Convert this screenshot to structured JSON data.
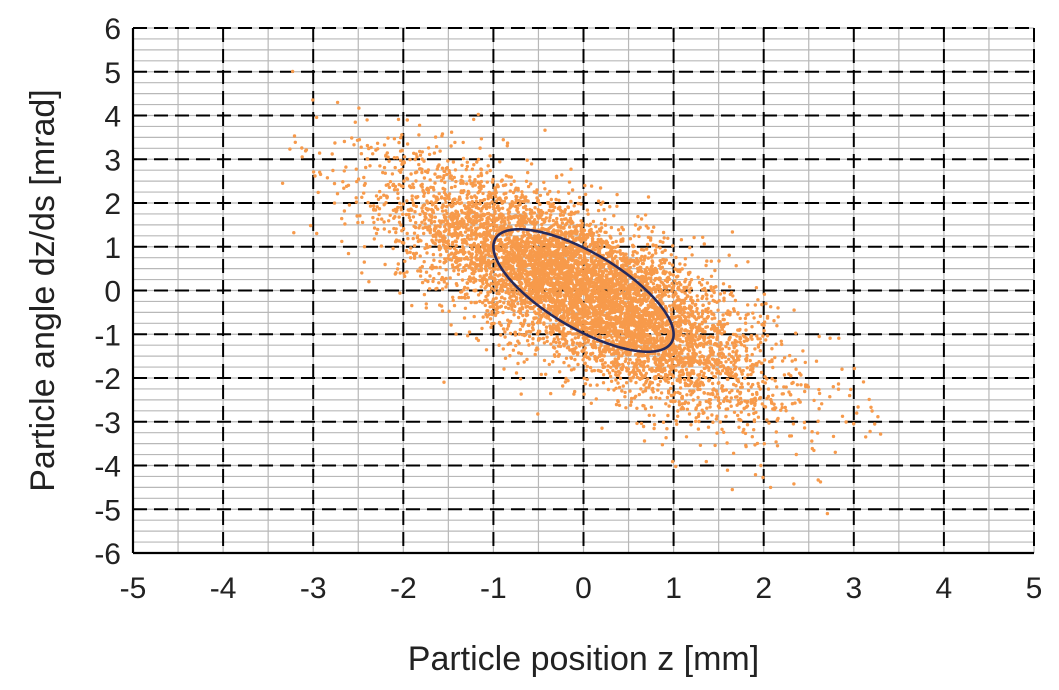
{
  "chart_data": {
    "type": "scatter",
    "title": "",
    "xlabel": "Particle position z [mm]",
    "ylabel": "Particle angle dz/ds [mrad]",
    "xlim": [
      -5,
      5
    ],
    "ylim": [
      -6,
      6
    ],
    "xticks": [
      "-5",
      "-4",
      "-3",
      "-2",
      "-1",
      "0",
      "1",
      "2",
      "3",
      "4",
      "5"
    ],
    "yticks": [
      "6",
      "5",
      "4",
      "3",
      "2",
      "1",
      "0",
      "-1",
      "-2",
      "-3",
      "-4",
      "-5",
      "-6"
    ],
    "grid": {
      "major": "dashed black",
      "minor": "solid gray",
      "minor_step": [
        0.5,
        0.25
      ]
    },
    "series": [
      {
        "kind": "points",
        "color": "#F79A4B",
        "distribution": {
          "n": 7000,
          "mean": [
            0,
            0
          ],
          "sigma_z": 1.0,
          "sigma_angle": 1.3,
          "correlation": -0.75
        },
        "extent_z": [
          -3.5,
          3.6
        ],
        "extent_angle": [
          -5.8,
          5.3
        ]
      },
      {
        "kind": "ellipse",
        "color": "#262A5C",
        "center": [
          0,
          0
        ],
        "vertices": [
          [
            -0.8,
            1.0
          ],
          [
            0.8,
            -1.0
          ]
        ],
        "z_max": 1.0,
        "angle_max": 1.4
      }
    ]
  }
}
